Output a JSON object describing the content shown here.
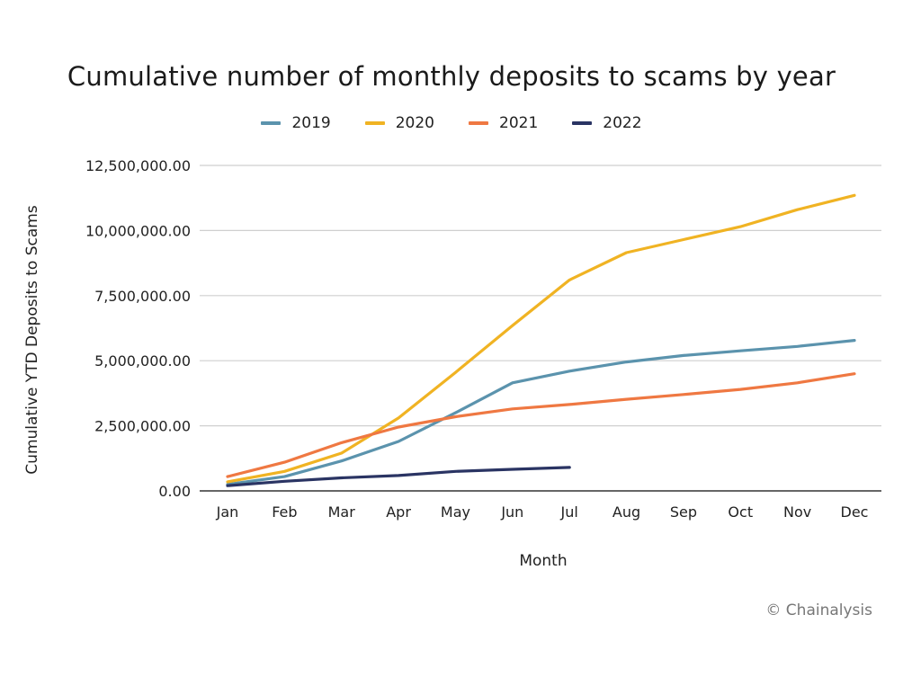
{
  "chart_data": {
    "type": "line",
    "title": "Cumulative number of monthly deposits to scams by year",
    "xlabel": "Month",
    "ylabel": "Cumulative YTD Deposits to Scams",
    "categories": [
      "Jan",
      "Feb",
      "Mar",
      "Apr",
      "May",
      "Jun",
      "Jul",
      "Aug",
      "Sep",
      "Oct",
      "Nov",
      "Dec"
    ],
    "yticks": [
      "0.00",
      "2,500,000.00",
      "5,000,000.00",
      "7,500,000.00",
      "10,000,000.00",
      "12,500,000.00"
    ],
    "ylim": [
      0,
      12500000
    ],
    "grid": true,
    "legend_position": "top-center",
    "series": [
      {
        "name": "2019",
        "color": "#5b93ad",
        "values": [
          250000,
          550000,
          1150000,
          1900000,
          3000000,
          4150000,
          4600000,
          4950000,
          5200000,
          5380000,
          5550000,
          5780000
        ]
      },
      {
        "name": "2020",
        "color": "#f0b323",
        "values": [
          350000,
          750000,
          1450000,
          2800000,
          4550000,
          6350000,
          8100000,
          9150000,
          9650000,
          10150000,
          10800000,
          11350000
        ]
      },
      {
        "name": "2021",
        "color": "#ef7842",
        "values": [
          550000,
          1100000,
          1850000,
          2450000,
          2850000,
          3150000,
          3320000,
          3520000,
          3700000,
          3900000,
          4150000,
          4500000
        ]
      },
      {
        "name": "2022",
        "color": "#2a3463",
        "values": [
          200000,
          370000,
          500000,
          590000,
          750000,
          830000,
          900000,
          null,
          null,
          null,
          null,
          null
        ]
      }
    ]
  },
  "credit": "© Chainalysis"
}
